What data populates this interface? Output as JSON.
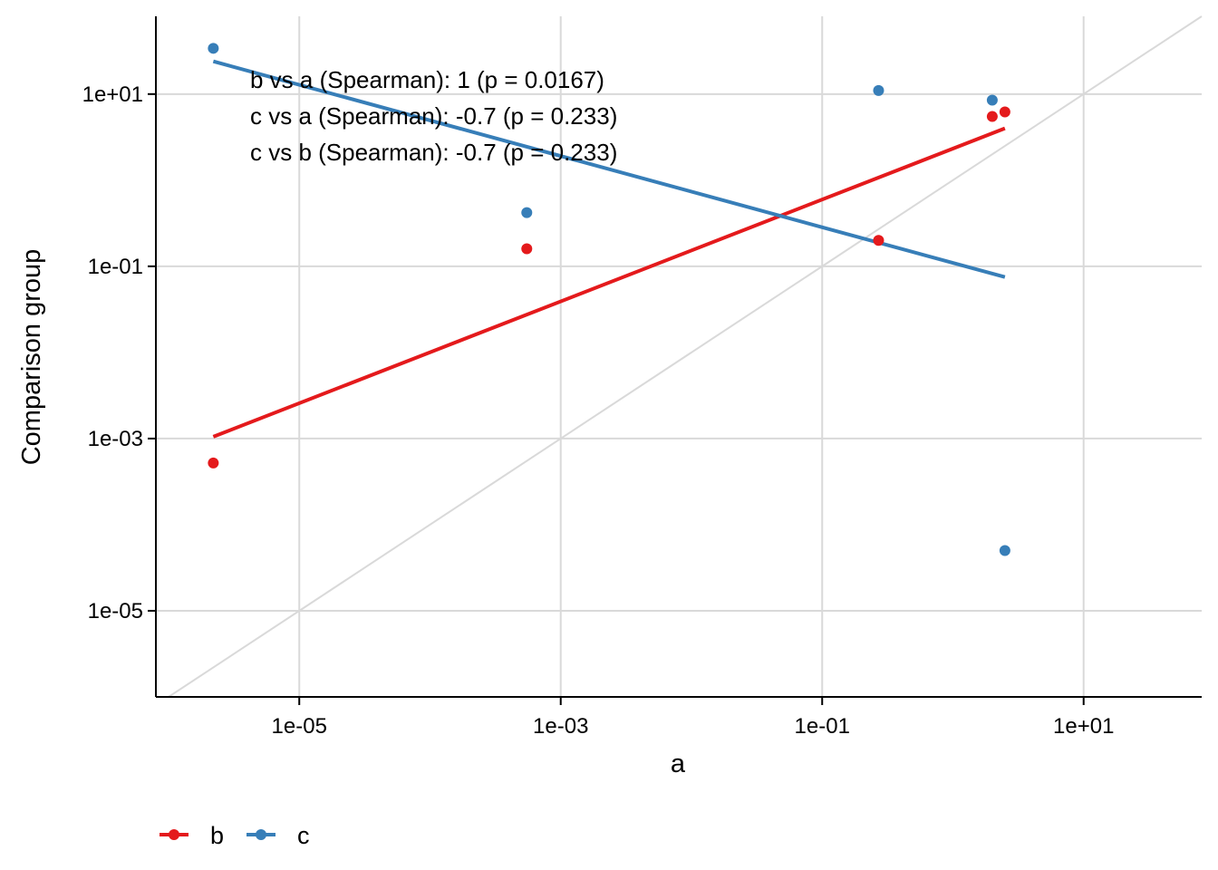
{
  "chart_data": {
    "type": "scatter",
    "title": "",
    "xlabel": "a",
    "ylabel": "Comparison group",
    "x_scale": "log10",
    "y_scale": "log10",
    "xlim": [
      8e-07,
      80
    ],
    "ylim": [
      1e-06,
      80
    ],
    "x_ticks": [
      1e-05,
      0.001,
      0.1,
      10.0
    ],
    "x_tick_labels": [
      "1e-05",
      "1e-03",
      "1e-01",
      "1e+01"
    ],
    "y_ticks": [
      1e-05,
      0.001,
      0.1,
      10.0
    ],
    "y_tick_labels": [
      "1e-05",
      "1e-03",
      "1e-01",
      "1e+01"
    ],
    "grid": true,
    "identity_line": true,
    "legend_position": "bottom-left",
    "series": [
      {
        "name": "b",
        "color": "#e41a1c",
        "points": [
          {
            "x": 2.2e-06,
            "y": 0.00052
          },
          {
            "x": 0.00055,
            "y": 0.16
          },
          {
            "x": 0.27,
            "y": 0.2
          },
          {
            "x": 2.0,
            "y": 5.5
          },
          {
            "x": 2.5,
            "y": 6.2
          }
        ],
        "fit": {
          "x": [
            2.2e-06,
            2.5
          ],
          "y": [
            0.00105,
            4.0
          ]
        }
      },
      {
        "name": "c",
        "color": "#377eb8",
        "points": [
          {
            "x": 2.2e-06,
            "y": 34
          },
          {
            "x": 0.00055,
            "y": 0.42
          },
          {
            "x": 0.27,
            "y": 11
          },
          {
            "x": 2.0,
            "y": 8.5
          },
          {
            "x": 2.5,
            "y": 5e-05
          }
        ],
        "fit": {
          "x": [
            2.2e-06,
            2.5
          ],
          "y": [
            24,
            0.075
          ]
        }
      }
    ],
    "annotations": [
      "b vs a (Spearman): 1 (p = 0.0167)",
      "c vs a (Spearman): -0.7 (p = 0.233)",
      "c vs b (Spearman): -0.7 (p = 0.233)"
    ]
  }
}
